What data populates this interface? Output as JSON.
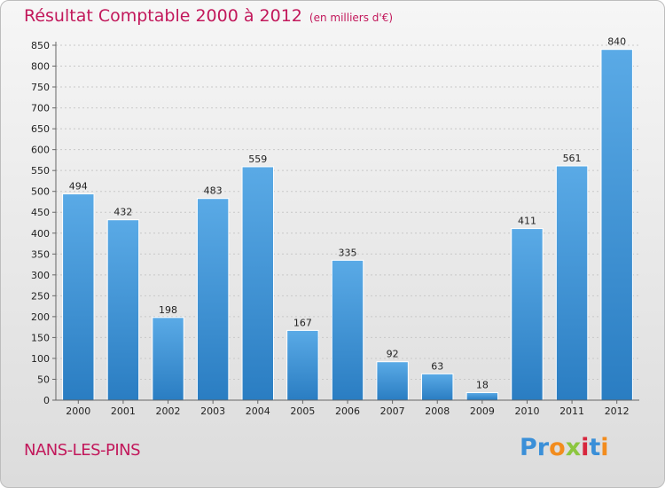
{
  "title": "Résultat Comptable 2000 à 2012",
  "subtitle": "(en milliers d'€)",
  "city": "NANS-LES-PINS",
  "logo": {
    "text": "Proxiti",
    "letters": [
      "P",
      "r",
      "o",
      "x",
      "i",
      "t",
      "i"
    ],
    "colors": [
      "#3a8fd8",
      "#3a8fd8",
      "#f28c1e",
      "#8cc63f",
      "#d7263d",
      "#3a8fd8",
      "#f28c1e"
    ]
  },
  "colors": {
    "bar_light": "#5aaae6",
    "bar_dark": "#2a7dc2",
    "title": "#c2185b",
    "grid": "#c8c8c8"
  },
  "chart_data": {
    "type": "bar",
    "title": "Résultat Comptable 2000 à 2012",
    "ylabel": "(en milliers d'€)",
    "xlabel": "",
    "categories": [
      "2000",
      "2001",
      "2002",
      "2003",
      "2004",
      "2005",
      "2006",
      "2007",
      "2008",
      "2009",
      "2010",
      "2011",
      "2012"
    ],
    "values": [
      494,
      432,
      198,
      483,
      559,
      167,
      335,
      92,
      63,
      18,
      411,
      561,
      840
    ],
    "ylim": [
      0,
      850
    ],
    "yticks": [
      0,
      50,
      100,
      150,
      200,
      250,
      300,
      350,
      400,
      450,
      500,
      550,
      600,
      650,
      700,
      750,
      800,
      850
    ],
    "grid": true
  }
}
